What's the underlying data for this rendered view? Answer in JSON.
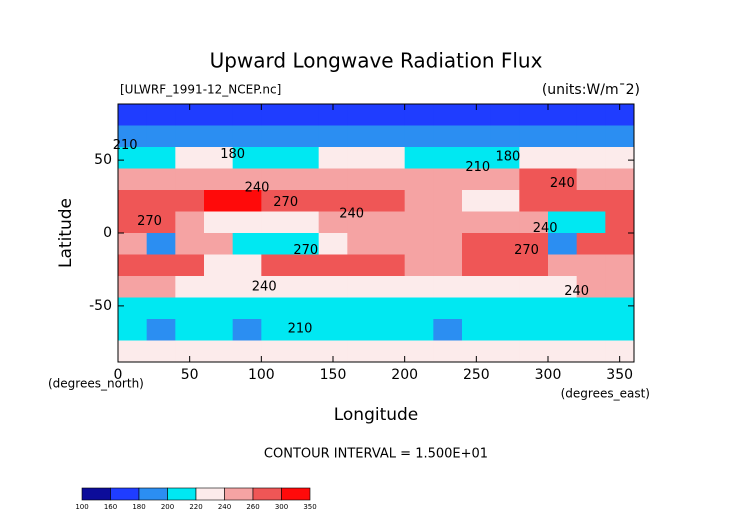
{
  "chart_data": {
    "type": "contour",
    "title": "Upward Longwave Radiation Flux",
    "source": "[ULWRF_1991-12_NCEP.nc]",
    "units": "(units:W/m¯2)",
    "xlabel": "Longitude",
    "ylabel": "Latitude",
    "xunit": "(degrees_east)",
    "yunit": "(degrees_north)",
    "footer": "CONTOUR INTERVAL = 1.500E+01",
    "xlim": [
      0,
      360
    ],
    "ylim": [
      -88.5,
      88.5
    ],
    "xticks": [
      0,
      50,
      100,
      150,
      200,
      250,
      300,
      350
    ],
    "yticks": [
      -50,
      0,
      50
    ],
    "levels": [
      100,
      160,
      180,
      200,
      220,
      240,
      260,
      300,
      350
    ],
    "colors": [
      "#0c0c9a",
      "#1f3dff",
      "#2b8ef2",
      "#00e8f2",
      "#fcebeb",
      "#f5a3a3",
      "#ef5656",
      "#ff0a0a"
    ],
    "z": [
      [
        165,
        165,
        165,
        168,
        170,
        170,
        168,
        165,
        165,
        168,
        170,
        170,
        168,
        165,
        165,
        160,
        165,
        165
      ],
      [
        195,
        195,
        190,
        188,
        190,
        192,
        190,
        188,
        185,
        185,
        185,
        188,
        192,
        190,
        188,
        185,
        190,
        195
      ],
      [
        205,
        215,
        235,
        232,
        215,
        212,
        215,
        220,
        222,
        220,
        218,
        215,
        210,
        208,
        225,
        226,
        225,
        222
      ],
      [
        245,
        248,
        245,
        245,
        245,
        244,
        244,
        245,
        246,
        245,
        245,
        242,
        240,
        245,
        265,
        268,
        250,
        245
      ],
      [
        268,
        270,
        278,
        305,
        300,
        280,
        272,
        270,
        268,
        262,
        255,
        250,
        235,
        238,
        272,
        270,
        262,
        260
      ],
      [
        262,
        260,
        258,
        232,
        228,
        230,
        236,
        248,
        250,
        250,
        252,
        248,
        250,
        255,
        255,
        200,
        210,
        265
      ],
      [
        255,
        195,
        245,
        245,
        218,
        215,
        212,
        235,
        245,
        245,
        248,
        250,
        275,
        278,
        275,
        190,
        262,
        268
      ],
      [
        265,
        268,
        268,
        236,
        236,
        276,
        278,
        276,
        275,
        275,
        252,
        250,
        275,
        278,
        270,
        252,
        250,
        250
      ],
      [
        246,
        244,
        238,
        236,
        235,
        236,
        235,
        238,
        236,
        234,
        232,
        235,
        238,
        236,
        236,
        238,
        240,
        242
      ],
      [
        215,
        216,
        218,
        214,
        215,
        212,
        214,
        216,
        218,
        215,
        214,
        216,
        218,
        215,
        214,
        216,
        215,
        214
      ],
      [
        208,
        196,
        205,
        210,
        198,
        212,
        205,
        208,
        210,
        212,
        206,
        198,
        205,
        208,
        212,
        206,
        200,
        208
      ],
      [
        226,
        225,
        224,
        226,
        225,
        226,
        225,
        224,
        226,
        225,
        224,
        226,
        225,
        224,
        226,
        225,
        224,
        226
      ]
    ],
    "annotations": [
      {
        "label": "210",
        "x": 5,
        "y": 60
      },
      {
        "label": "180",
        "x": 80,
        "y": 54
      },
      {
        "label": "240",
        "x": 97,
        "y": 31
      },
      {
        "label": "270",
        "x": 117,
        "y": 21
      },
      {
        "label": "240",
        "x": 163,
        "y": 13
      },
      {
        "label": "270",
        "x": 22,
        "y": 8
      },
      {
        "label": "270",
        "x": 131,
        "y": -12
      },
      {
        "label": "240",
        "x": 102,
        "y": -37
      },
      {
        "label": "210",
        "x": 127,
        "y": -66
      },
      {
        "label": "210",
        "x": 251,
        "y": 45
      },
      {
        "label": "180",
        "x": 272,
        "y": 52
      },
      {
        "label": "240",
        "x": 310,
        "y": 34
      },
      {
        "label": "240",
        "x": 298,
        "y": 3
      },
      {
        "label": "270",
        "x": 285,
        "y": -12
      },
      {
        "label": "240",
        "x": 320,
        "y": -40
      }
    ]
  }
}
